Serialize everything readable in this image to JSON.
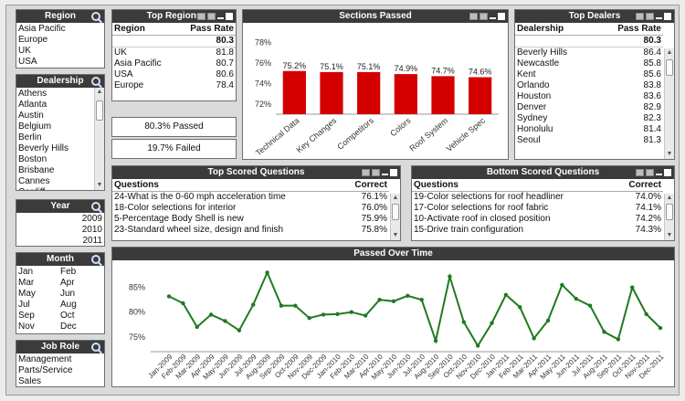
{
  "region": {
    "title": "Region",
    "items": [
      "Asia Pacific",
      "Europe",
      "UK",
      "USA"
    ]
  },
  "dealership": {
    "title": "Dealership",
    "items": [
      "Athens",
      "Atlanta",
      "Austin",
      "Belgium",
      "Berlin",
      "Beverly Hills",
      "Boston",
      "Brisbane",
      "Cannes",
      "Cardiff"
    ]
  },
  "year": {
    "title": "Year",
    "items": [
      "2009",
      "2010",
      "2011"
    ]
  },
  "month": {
    "title": "Month",
    "items": [
      "Jan",
      "Feb",
      "Mar",
      "Apr",
      "May",
      "Jun",
      "Jul",
      "Aug",
      "Sep",
      "Oct",
      "Nov",
      "Dec"
    ]
  },
  "job_role": {
    "title": "Job Role",
    "items": [
      "Management",
      "Parts/Service",
      "Sales"
    ]
  },
  "top_regions": {
    "title": "Top Regions",
    "col_region": "Region",
    "col_pass": "Pass Rate",
    "total": "80.3",
    "rows": [
      {
        "name": "UK",
        "value": "81.8"
      },
      {
        "name": "Asia Pacific",
        "value": "80.7"
      },
      {
        "name": "USA",
        "value": "80.6"
      },
      {
        "name": "Europe",
        "value": "78.4"
      }
    ]
  },
  "passed_text": "80.3% Passed",
  "failed_text": "19.7% Failed",
  "top_dealers": {
    "title": "Top Dealers",
    "col_dealer": "Dealership",
    "col_pass": "Pass Rate",
    "total": "80.3",
    "rows": [
      {
        "name": "Beverly Hills",
        "value": "86.4"
      },
      {
        "name": "Newcastle",
        "value": "85.8"
      },
      {
        "name": "Kent",
        "value": "85.6"
      },
      {
        "name": "Orlando",
        "value": "83.8"
      },
      {
        "name": "Houston",
        "value": "83.6"
      },
      {
        "name": "Denver",
        "value": "82.9"
      },
      {
        "name": "Sydney",
        "value": "82.3"
      },
      {
        "name": "Honolulu",
        "value": "81.4"
      },
      {
        "name": "Seoul",
        "value": "81.3"
      }
    ]
  },
  "top_questions": {
    "title": "Top Scored Questions",
    "col_q": "Questions",
    "col_c": "Correct",
    "rows": [
      {
        "q": "24-What is the 0-60 mph acceleration time",
        "c": "76.1%"
      },
      {
        "q": "18-Color selections for interior",
        "c": "76.0%"
      },
      {
        "q": "5-Percentage Body Shell is new",
        "c": "75.9%"
      },
      {
        "q": "23-Standard wheel size, design and finish",
        "c": "75.8%"
      }
    ]
  },
  "bottom_questions": {
    "title": "Bottom Scored Questions",
    "col_q": "Questions",
    "col_c": "Correct",
    "rows": [
      {
        "q": "19-Color selections for roof headliner",
        "c": "74.0%"
      },
      {
        "q": "17-Color selections for roof fabric",
        "c": "74.1%"
      },
      {
        "q": "10-Activate roof in closed position",
        "c": "74.2%"
      },
      {
        "q": "15-Drive train configuration",
        "c": "74.3%"
      }
    ]
  },
  "sections_title": "Sections Passed",
  "line_title": "Passed Over Time",
  "colors": {
    "caption": "#3b3b3b",
    "bar": "#d40000",
    "line": "#1f7a1f"
  },
  "chart_data": [
    {
      "type": "bar",
      "title": "Sections Passed",
      "categories": [
        "Technical Data",
        "Key Changes",
        "Competitors",
        "Colors",
        "Roof System",
        "Vehicle Spec"
      ],
      "values": [
        75.2,
        75.1,
        75.1,
        74.9,
        74.7,
        74.6
      ],
      "value_labels": [
        "75.2%",
        "75.1%",
        "75.1%",
        "74.9%",
        "74.7%",
        "74.6%"
      ],
      "yticks": [
        "78%",
        "76%",
        "74%",
        "72%"
      ],
      "ylim": [
        71,
        79
      ],
      "grid": false
    },
    {
      "type": "line",
      "title": "Passed Over Time",
      "x": [
        "Jan-2009",
        "Feb-2009",
        "Mar-2009",
        "Apr-2009",
        "May-2009",
        "Jun-2009",
        "Jul-2009",
        "Aug-2009",
        "Sep-2009",
        "Oct-2009",
        "Nov-2009",
        "Dec-2009",
        "Jan-2010",
        "Feb-2010",
        "Mar-2010",
        "Apr-2010",
        "May-2010",
        "Jun-2010",
        "Jul-2010",
        "Aug-2010",
        "Sep-2010",
        "Oct-2010",
        "Nov-2010",
        "Dec-2010",
        "Jan-2011",
        "Feb-2011",
        "Mar-2011",
        "Apr-2011",
        "May-2011",
        "Jun-2011",
        "Jul-2011",
        "Aug-2011",
        "Sep-2011",
        "Oct-2011",
        "Nov-2011",
        "Dec-2011"
      ],
      "values": [
        83.2,
        81.8,
        77.0,
        79.5,
        78.2,
        76.3,
        81.5,
        88.0,
        81.3,
        81.3,
        78.8,
        79.5,
        79.6,
        80.0,
        79.3,
        82.5,
        82.2,
        83.3,
        82.5,
        74.2,
        87.2,
        78.0,
        73.2,
        77.8,
        83.5,
        81.0,
        74.7,
        78.3,
        85.5,
        82.7,
        81.3,
        76.0,
        74.5,
        85.0,
        79.6,
        76.8
      ],
      "yticks": [
        "85%",
        "80%",
        "75%"
      ],
      "ylim": [
        72,
        89
      ],
      "grid": false
    }
  ]
}
